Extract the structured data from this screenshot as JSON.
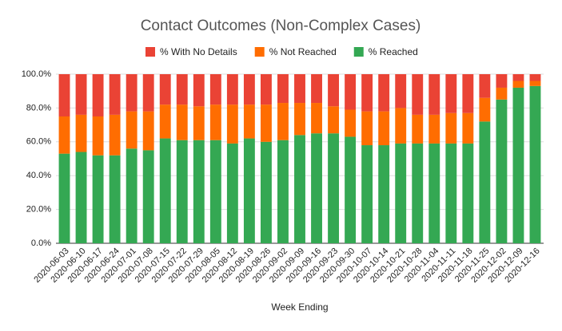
{
  "chart_data": {
    "type": "stacked_bar",
    "title": "Contact Outcomes (Non-Complex Cases)",
    "x_label": "Week Ending",
    "categories": [
      "2020-06-03",
      "2020-06-10",
      "2020-06-17",
      "2020-06-24",
      "2020-07-01",
      "2020-07-08",
      "2020-07-15",
      "2020-07-22",
      "2020-07-29",
      "2020-08-05",
      "2020-08-12",
      "2020-08-19",
      "2020-08-26",
      "2020-09-02",
      "2020-09-09",
      "2020-09-16",
      "2020-09-23",
      "2020-09-30",
      "2020-10-07",
      "2020-10-14",
      "2020-10-21",
      "2020-10-28",
      "2020-11-04",
      "2020-11-11",
      "2020-11-18",
      "2020-11-25",
      "2020-12-02",
      "2020-12-09",
      "2020-12-16"
    ],
    "series": [
      {
        "name": "% With No Details",
        "color": "#ea4335",
        "values": [
          25,
          24,
          25,
          24,
          22,
          22,
          18,
          18,
          19,
          18,
          18,
          18,
          18,
          17,
          17,
          17,
          19,
          21,
          22,
          22,
          20,
          24,
          24,
          23,
          23,
          14,
          8,
          4,
          4
        ]
      },
      {
        "name": "% Not Reached",
        "color": "#ff6d01",
        "values": [
          22,
          22,
          23,
          24,
          22,
          23,
          20,
          21,
          20,
          21,
          23,
          20,
          22,
          22,
          19,
          18,
          16,
          16,
          20,
          20,
          21,
          17,
          17,
          18,
          18,
          14,
          7,
          4,
          3
        ]
      },
      {
        "name": "% Reached",
        "color": "#34a853",
        "values": [
          53,
          54,
          52,
          52,
          56,
          55,
          62,
          61,
          61,
          61,
          59,
          62,
          60,
          61,
          64,
          65,
          65,
          63,
          58,
          58,
          59,
          59,
          59,
          59,
          59,
          72,
          85,
          92,
          93
        ]
      }
    ],
    "ylim": [
      0,
      100
    ],
    "yticks": [
      {
        "value": 0,
        "label": "0.0%"
      },
      {
        "value": 20,
        "label": "20.0%"
      },
      {
        "value": 40,
        "label": "40.0%"
      },
      {
        "value": 60,
        "label": "60.0%"
      },
      {
        "value": 80,
        "label": "80.0%"
      },
      {
        "value": 100,
        "label": "100.0%"
      }
    ],
    "grid": true
  }
}
